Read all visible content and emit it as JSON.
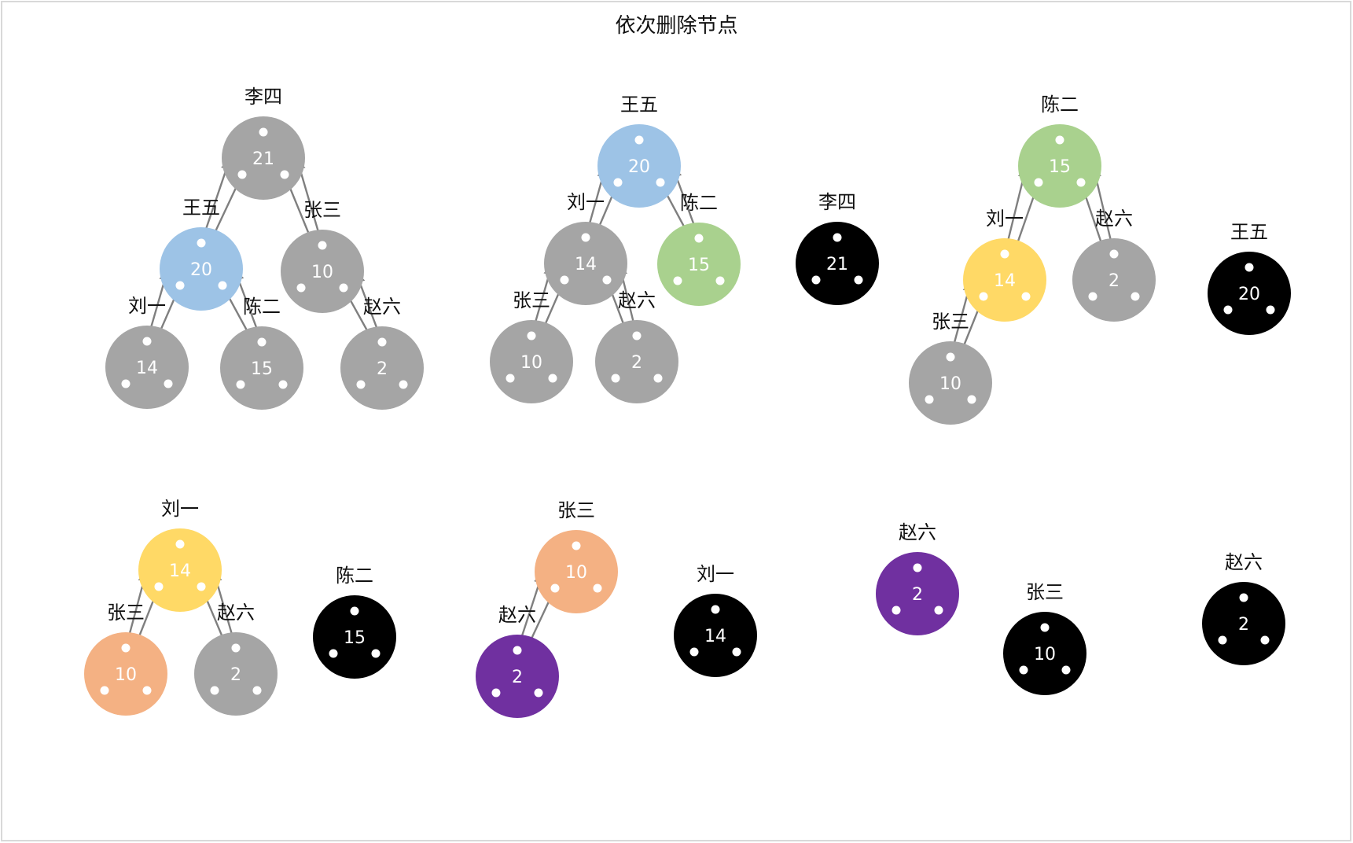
{
  "title": "依次删除节点",
  "colors": {
    "gray": "#A5A5A5",
    "blue": "#9DC3E6",
    "green": "#A9D18E",
    "yellow": "#FFD966",
    "orange": "#F4B183",
    "purple": "#7030A0",
    "black": "#000000",
    "arrow": "#7F7F7F"
  },
  "nodes": [
    {
      "id": "n1",
      "name": "李四",
      "value": "21",
      "color": "gray"
    },
    {
      "id": "n2",
      "name": "王五",
      "value": "20",
      "color": "blue"
    },
    {
      "id": "n3",
      "name": "张三",
      "value": "10",
      "color": "gray"
    },
    {
      "id": "n4",
      "name": "刘一",
      "value": "14",
      "color": "gray"
    },
    {
      "id": "n5",
      "name": "陈二",
      "value": "15",
      "color": "gray"
    },
    {
      "id": "n6",
      "name": "赵六",
      "value": "2",
      "color": "gray"
    },
    {
      "id": "n7",
      "name": "王五",
      "value": "20",
      "color": "blue"
    },
    {
      "id": "n8",
      "name": "刘一",
      "value": "14",
      "color": "gray"
    },
    {
      "id": "n9",
      "name": "陈二",
      "value": "15",
      "color": "green"
    },
    {
      "id": "n10",
      "name": "张三",
      "value": "10",
      "color": "gray"
    },
    {
      "id": "n11",
      "name": "赵六",
      "value": "2",
      "color": "gray"
    },
    {
      "id": "n12",
      "name": "李四",
      "value": "21",
      "color": "black"
    },
    {
      "id": "n13",
      "name": "陈二",
      "value": "15",
      "color": "green"
    },
    {
      "id": "n14",
      "name": "刘一",
      "value": "14",
      "color": "yellow"
    },
    {
      "id": "n15",
      "name": "赵六",
      "value": "2",
      "color": "gray"
    },
    {
      "id": "n16",
      "name": "张三",
      "value": "10",
      "color": "gray"
    },
    {
      "id": "n17",
      "name": "王五",
      "value": "20",
      "color": "black"
    },
    {
      "id": "n18",
      "name": "刘一",
      "value": "14",
      "color": "yellow"
    },
    {
      "id": "n19",
      "name": "张三",
      "value": "10",
      "color": "orange"
    },
    {
      "id": "n20",
      "name": "赵六",
      "value": "2",
      "color": "gray"
    },
    {
      "id": "n21",
      "name": "陈二",
      "value": "15",
      "color": "black"
    },
    {
      "id": "n22",
      "name": "张三",
      "value": "10",
      "color": "orange"
    },
    {
      "id": "n23",
      "name": "赵六",
      "value": "2",
      "color": "purple"
    },
    {
      "id": "n24",
      "name": "刘一",
      "value": "14",
      "color": "black"
    },
    {
      "id": "n25",
      "name": "赵六",
      "value": "2",
      "color": "purple"
    },
    {
      "id": "n26",
      "name": "张三",
      "value": "10",
      "color": "black"
    },
    {
      "id": "n27",
      "name": "赵六",
      "value": "2",
      "color": "black"
    }
  ],
  "edges": [
    {
      "parent": "n1",
      "child": "n2"
    },
    {
      "parent": "n1",
      "child": "n3"
    },
    {
      "parent": "n2",
      "child": "n4"
    },
    {
      "parent": "n2",
      "child": "n5"
    },
    {
      "parent": "n3",
      "child": "n6"
    },
    {
      "parent": "n7",
      "child": "n8"
    },
    {
      "parent": "n7",
      "child": "n9"
    },
    {
      "parent": "n8",
      "child": "n10"
    },
    {
      "parent": "n8",
      "child": "n11"
    },
    {
      "parent": "n13",
      "child": "n14"
    },
    {
      "parent": "n13",
      "child": "n15"
    },
    {
      "parent": "n14",
      "child": "n16"
    },
    {
      "parent": "n18",
      "child": "n19"
    },
    {
      "parent": "n18",
      "child": "n20"
    },
    {
      "parent": "n22",
      "child": "n23"
    }
  ]
}
